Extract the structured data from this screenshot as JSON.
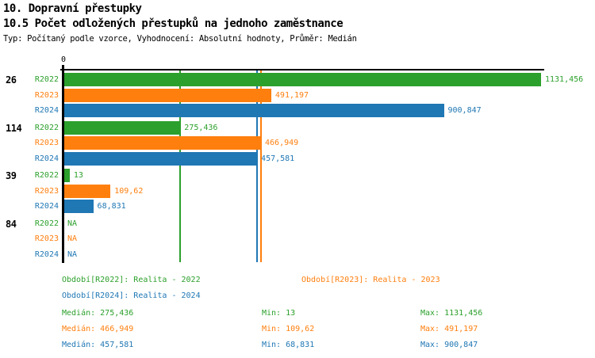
{
  "header": {
    "title1": "10. Dopravní přestupky",
    "title2": "10.5 Počet odložených přestupků na jednoho zaměstnance",
    "subtitle": "Typ: Počítaný podle vzorce, Vyhodnocení: Absolutní hodnoty, Průměr: Medián"
  },
  "colors": {
    "R2022": "#2ca02c",
    "R2023": "#ff7f0e",
    "R2024": "#1f77b4",
    "axis": "#000000",
    "background": "#ffffff"
  },
  "chart_data": {
    "type": "bar",
    "orientation": "horizontal",
    "value_axis": {
      "origin_label": "0",
      "max": 1131.456
    },
    "series_names": [
      "R2022",
      "R2023",
      "R2024"
    ],
    "groups": [
      {
        "label": "26",
        "bars": [
          {
            "series": "R2022",
            "value": 1131.456,
            "label": "1131,456"
          },
          {
            "series": "R2023",
            "value": 491.197,
            "label": "491,197"
          },
          {
            "series": "R2024",
            "value": 900.847,
            "label": "900,847"
          }
        ]
      },
      {
        "label": "114",
        "bars": [
          {
            "series": "R2022",
            "value": 275.436,
            "label": "275,436"
          },
          {
            "series": "R2023",
            "value": 466.949,
            "label": "466,949"
          },
          {
            "series": "R2024",
            "value": 457.581,
            "label": "457,581"
          }
        ]
      },
      {
        "label": "39",
        "bars": [
          {
            "series": "R2022",
            "value": 13,
            "label": "13"
          },
          {
            "series": "R2023",
            "value": 109.62,
            "label": "109,62"
          },
          {
            "series": "R2024",
            "value": 68.831,
            "label": "68,831"
          }
        ]
      },
      {
        "label": "84",
        "bars": [
          {
            "series": "R2022",
            "value": null,
            "label": "NA"
          },
          {
            "series": "R2023",
            "value": null,
            "label": "NA"
          },
          {
            "series": "R2024",
            "value": null,
            "label": "NA"
          }
        ]
      }
    ],
    "median_lines": [
      {
        "series": "R2022",
        "value": 275.436
      },
      {
        "series": "R2023",
        "value": 466.949
      },
      {
        "series": "R2024",
        "value": 457.581
      }
    ]
  },
  "legend": {
    "items": [
      {
        "series": "R2022",
        "label": "Období[R2022]: Realita - 2022"
      },
      {
        "series": "R2023",
        "label": "Období[R2023]: Realita - 2023"
      },
      {
        "series": "R2024",
        "label": "Období[R2024]: Realita - 2024"
      }
    ],
    "stats": [
      {
        "series": "R2022",
        "median": "Medián: 275,436",
        "min": "Min: 13",
        "max": "Max: 1131,456"
      },
      {
        "series": "R2023",
        "median": "Medián: 466,949",
        "min": "Min: 109,62",
        "max": "Max: 491,197"
      },
      {
        "series": "R2024",
        "median": "Medián: 457,581",
        "min": "Min: 68,831",
        "max": "Max: 900,847"
      }
    ]
  }
}
